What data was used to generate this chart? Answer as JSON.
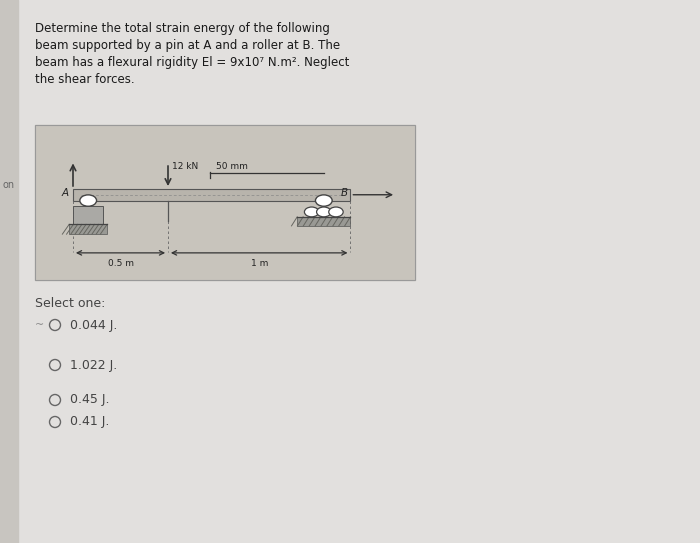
{
  "page_bg": "#e2e0de",
  "left_strip_color": "#c8c5c0",
  "diagram_bg": "#c8c4bc",
  "text_color": "#1a1a1a",
  "title_lines": [
    "Determine the total strain energy of the following",
    "beam supported by a pin at Á and a roller at ß. The",
    "beam has a flexural rigidity El = 9x10⁷ N.m². Neglect",
    "the shear forces."
  ],
  "title_lines_plain": [
    "Determine the total strain energy of the following",
    "beam supported by a pin at A and a roller at B. The",
    "beam has a flexural rigidity El = 9x10⁷ N.m². Neglect",
    "the shear forces."
  ],
  "select_one": "Select one:",
  "options": [
    "0.044 J.",
    "1.022 J.",
    "0.45 J.",
    "0.41 J."
  ],
  "label_12kN": "12 kN",
  "label_50mm": "50 mm",
  "label_05m": "0.5 m",
  "label_1m": "1 m",
  "label_A": "A",
  "label_B": "B"
}
